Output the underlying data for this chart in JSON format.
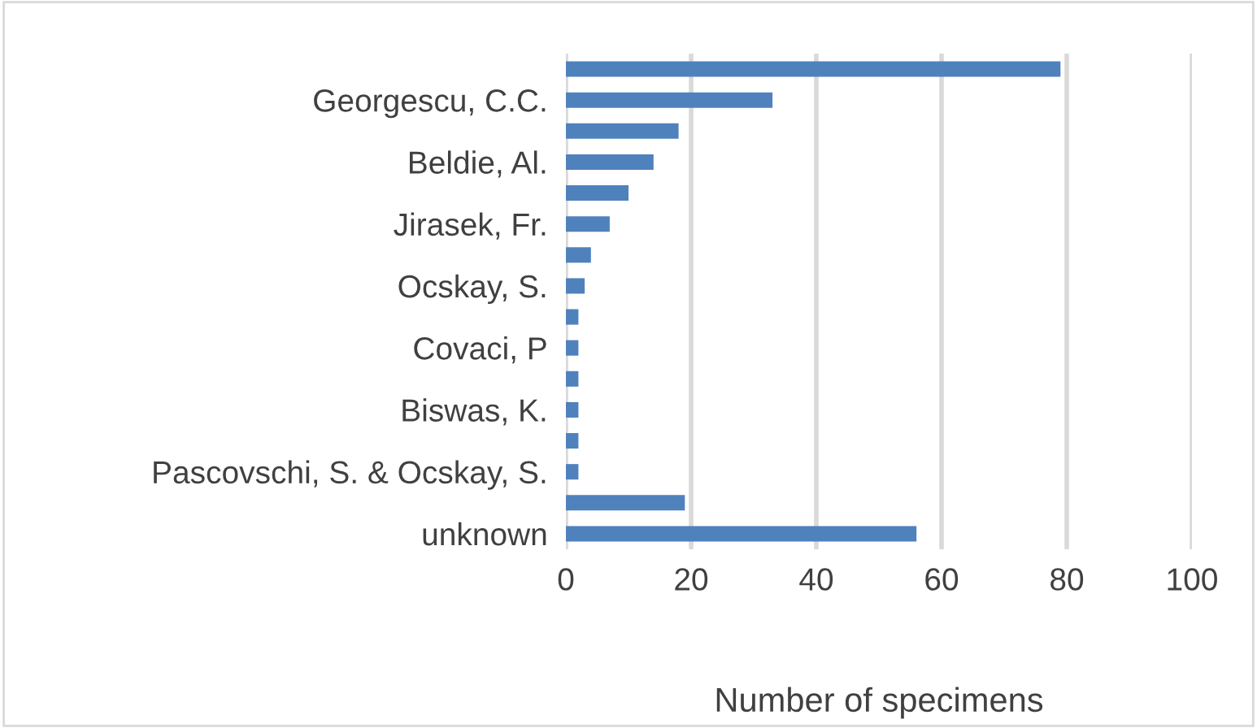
{
  "chart_data": {
    "type": "bar",
    "orientation": "horizontal",
    "xlabel": "Number of specimens",
    "categories": [
      null,
      "Georgescu, C.C.",
      null,
      "Beldie, Al.",
      null,
      "Jirasek, Fr.",
      null,
      "Ocskay, S.",
      null,
      "Covaci, P",
      null,
      "Biswas, K.",
      null,
      "Pascovschi, S. & Ocskay, S.",
      null,
      "unknown"
    ],
    "values": [
      79,
      33,
      18,
      14,
      10,
      7,
      4,
      3,
      2,
      2,
      2,
      2,
      2,
      2,
      19,
      56
    ],
    "color": "#4f81bd",
    "xlim": [
      0,
      100
    ],
    "xticks": [
      0,
      20,
      40,
      60,
      80,
      100
    ],
    "grid": "x",
    "legend": false
  }
}
